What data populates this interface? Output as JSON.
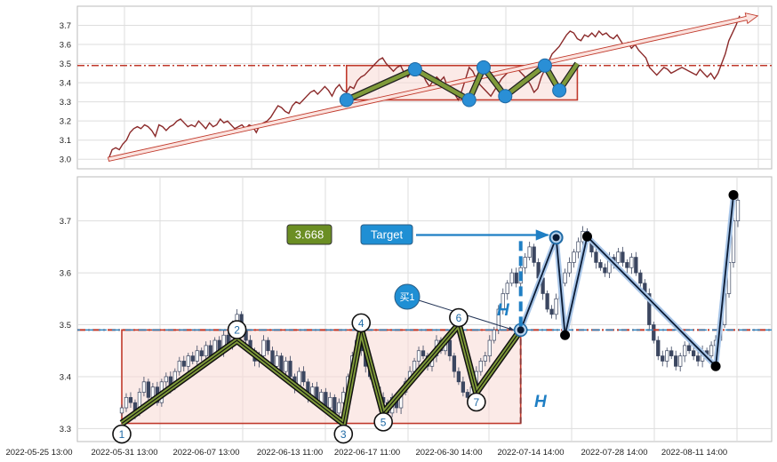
{
  "chart_data": [
    {
      "panel": "top",
      "type": "line",
      "ylim": [
        2.95,
        3.8
      ],
      "yticks": [
        3.0,
        3.1,
        3.2,
        3.3,
        3.4,
        3.5,
        3.6,
        3.7
      ],
      "grid": true,
      "series": [
        {
          "values": [
            3.0,
            3.05,
            3.06,
            3.05,
            3.08,
            3.1,
            3.14,
            3.16,
            3.17,
            3.16,
            3.18,
            3.17,
            3.15,
            3.12,
            3.18,
            3.17,
            3.15,
            3.17,
            3.18,
            3.2,
            3.21,
            3.19,
            3.17,
            3.18,
            3.17,
            3.2,
            3.18,
            3.16,
            3.19,
            3.17,
            3.18,
            3.21,
            3.19,
            3.2,
            3.18,
            3.16,
            3.17,
            3.18,
            3.16,
            3.18,
            3.17,
            3.14,
            3.18,
            3.19,
            3.2,
            3.22,
            3.25,
            3.28,
            3.27,
            3.25,
            3.24,
            3.28,
            3.3,
            3.29,
            3.31,
            3.33,
            3.35,
            3.36,
            3.34,
            3.36,
            3.38,
            3.36,
            3.33,
            3.37,
            3.39,
            3.36,
            3.35,
            3.38,
            3.37,
            3.41,
            3.43,
            3.44,
            3.46,
            3.48,
            3.5,
            3.52,
            3.53,
            3.5,
            3.48,
            3.46,
            3.48,
            3.49,
            3.45,
            3.43,
            3.46,
            3.47,
            3.44,
            3.45,
            3.41,
            3.38,
            3.41,
            3.43,
            3.41,
            3.43,
            3.38,
            3.36,
            3.34,
            3.31,
            3.36,
            3.42,
            3.48,
            3.46,
            3.42,
            3.39,
            3.37,
            3.35,
            3.33,
            3.36,
            3.39,
            3.42,
            3.44,
            3.46,
            3.47,
            3.48,
            3.46,
            3.44,
            3.42,
            3.39,
            3.35,
            3.37,
            3.43,
            3.47,
            3.51,
            3.55,
            3.57,
            3.59,
            3.62,
            3.65,
            3.67,
            3.66,
            3.63,
            3.62,
            3.65,
            3.64,
            3.66,
            3.64,
            3.67,
            3.65,
            3.66,
            3.64,
            3.63,
            3.65,
            3.62,
            3.59,
            3.61,
            3.58,
            3.6,
            3.57,
            3.55,
            3.53,
            3.48,
            3.46,
            3.44,
            3.46,
            3.48,
            3.47,
            3.45,
            3.46,
            3.47,
            3.48,
            3.47,
            3.46,
            3.45,
            3.44,
            3.47,
            3.45,
            3.43,
            3.45,
            3.42,
            3.45,
            3.5,
            3.55,
            3.62,
            3.66,
            3.7,
            3.75
          ]
        }
      ],
      "trend_line": {
        "from": [
          0,
          3.0
        ],
        "to": [
          180,
          3.75
        ]
      },
      "resistance_level": 3.49,
      "box": {
        "x0": 66,
        "x1": 130,
        "y0": 3.31,
        "y1": 3.49
      },
      "zigzag": [
        [
          66,
          3.31
        ],
        [
          85,
          3.47
        ],
        [
          100,
          3.31
        ],
        [
          104,
          3.48
        ],
        [
          110,
          3.33
        ],
        [
          121,
          3.49
        ],
        [
          125,
          3.36
        ],
        [
          130,
          3.5
        ]
      ]
    },
    {
      "panel": "bottom",
      "type": "candlestick",
      "ylim": [
        3.275,
        3.785
      ],
      "yticks": [
        3.3,
        3.4,
        3.5,
        3.6,
        3.7
      ],
      "grid": true,
      "xtick_labels": [
        "2022-05-25 13:00",
        "2022-05-31 13:00",
        "2022-06-07 13:00",
        "2022-06-13 11:00",
        "2022-06-17 11:00",
        "2022-06-30 14:00",
        "2022-07-14 14:00",
        "2022-07-28 14:00",
        "2022-08-11 14:00"
      ],
      "candles_close": [
        3.34,
        3.36,
        3.35,
        3.33,
        3.37,
        3.39,
        3.36,
        3.38,
        3.35,
        3.39,
        3.4,
        3.38,
        3.41,
        3.43,
        3.42,
        3.44,
        3.43,
        3.45,
        3.44,
        3.46,
        3.44,
        3.47,
        3.45,
        3.48,
        3.46,
        3.5,
        3.52,
        3.49,
        3.47,
        3.45,
        3.43,
        3.44,
        3.47,
        3.45,
        3.42,
        3.44,
        3.41,
        3.43,
        3.4,
        3.38,
        3.41,
        3.39,
        3.36,
        3.38,
        3.35,
        3.37,
        3.34,
        3.36,
        3.33,
        3.35,
        3.37,
        3.4,
        3.44,
        3.47,
        3.45,
        3.42,
        3.4,
        3.38,
        3.36,
        3.35,
        3.33,
        3.36,
        3.34,
        3.37,
        3.39,
        3.41,
        3.43,
        3.45,
        3.44,
        3.42,
        3.44,
        3.47,
        3.45,
        3.47,
        3.44,
        3.41,
        3.39,
        3.37,
        3.36,
        3.38,
        3.41,
        3.43,
        3.44,
        3.47,
        3.49,
        3.53,
        3.56,
        3.58,
        3.6,
        3.58,
        3.61,
        3.63,
        3.65,
        3.62,
        3.59,
        3.56,
        3.53,
        3.52,
        3.55,
        3.58,
        3.6,
        3.62,
        3.64,
        3.66,
        3.68,
        3.66,
        3.64,
        3.62,
        3.61,
        3.6,
        3.63,
        3.62,
        3.64,
        3.62,
        3.61,
        3.63,
        3.6,
        3.58,
        3.56,
        3.5,
        3.47,
        3.44,
        3.43,
        3.45,
        3.44,
        3.42,
        3.44,
        3.46,
        3.45,
        3.44,
        3.43,
        3.45,
        3.44,
        3.46,
        3.47,
        3.5,
        3.56,
        3.62,
        3.7,
        3.74
      ],
      "resistance_level": 3.49,
      "box": {
        "x0": 0,
        "x1": 90,
        "y0": 3.31,
        "y1": 3.49
      },
      "zigzag": [
        {
          "label": "1",
          "x": 0,
          "y": 3.31
        },
        {
          "label": "2",
          "x": 26,
          "y": 3.47
        },
        {
          "label": "3",
          "x": 50,
          "y": 3.31
        },
        {
          "label": "4",
          "x": 54,
          "y": 3.49
        },
        {
          "label": "5",
          "x": 59,
          "y": 3.33
        },
        {
          "label": "6",
          "x": 76,
          "y": 3.5
        },
        {
          "label": "7",
          "x": 80,
          "y": 3.37
        },
        {
          "label": "",
          "x": 90,
          "y": 3.49
        }
      ],
      "breakout_path": [
        [
          90,
          3.49
        ],
        [
          98,
          3.668
        ],
        [
          100,
          3.48
        ],
        [
          105,
          3.67
        ],
        [
          134,
          3.42
        ],
        [
          138,
          3.75
        ]
      ],
      "annotations": {
        "target_value": "3.668",
        "target_label": "Target",
        "buy_label": "买1",
        "height_label": "H"
      }
    }
  ]
}
